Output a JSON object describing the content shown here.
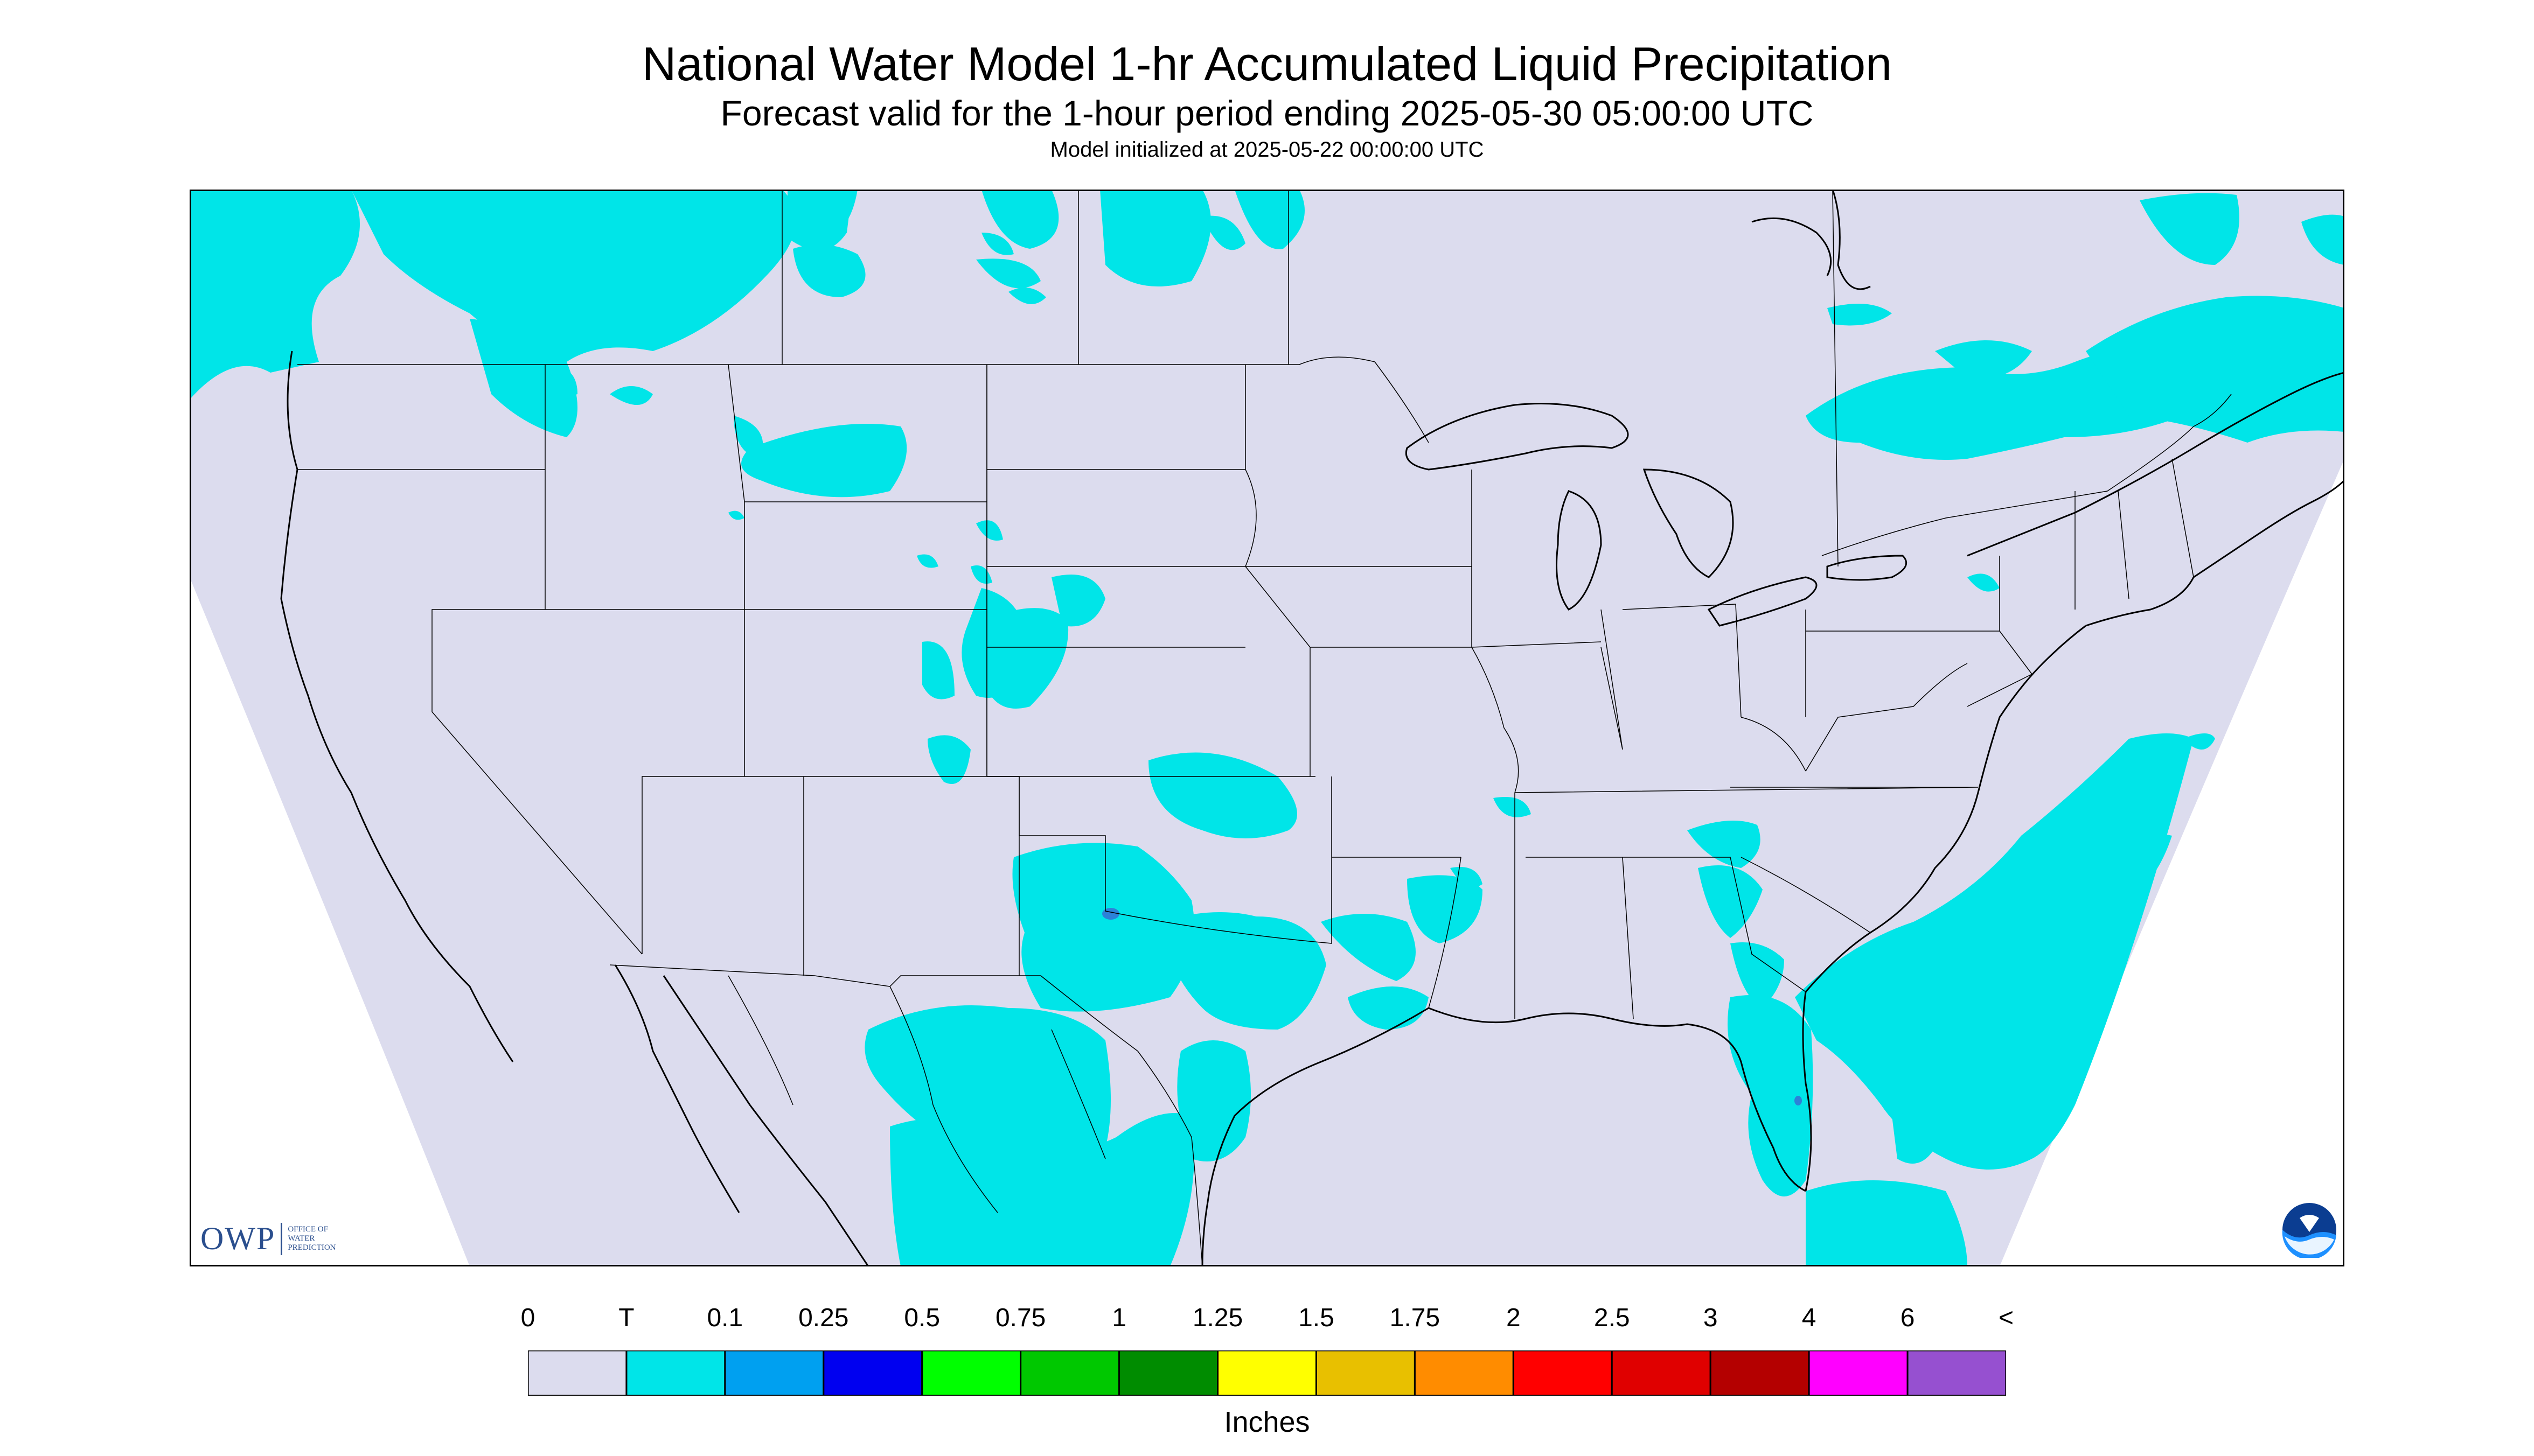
{
  "title": "National Water Model 1-hr Accumulated Liquid Precipitation",
  "subtitle": "Forecast valid for the 1-hour period ending 2025-05-30 05:00:00 UTC",
  "init": "Model initialized at 2025-05-22 00:00:00 UTC",
  "logo": {
    "name": "OWP",
    "lines": [
      "OFFICE OF",
      "WATER",
      "PREDICTION"
    ],
    "agency": "NOAA"
  },
  "legend": {
    "labels": [
      "0",
      "T",
      "0.1",
      "0.25",
      "0.5",
      "0.75",
      "1",
      "1.25",
      "1.5",
      "1.75",
      "2",
      "2.5",
      "3",
      "4",
      "6",
      "<"
    ],
    "colors": [
      "#dcdcee",
      "#00e5e8",
      "#00a0f0",
      "#0000f0",
      "#00ff00",
      "#00c800",
      "#008c00",
      "#ffff00",
      "#e8c000",
      "#ff8c00",
      "#ff0000",
      "#e00000",
      "#b40000",
      "#ff00ff",
      "#9650d0"
    ],
    "units": "Inches"
  },
  "colors": {
    "background": "#dcdcee",
    "trace": "#00e5e8",
    "light": "#2c82d8",
    "border": "#000000"
  }
}
